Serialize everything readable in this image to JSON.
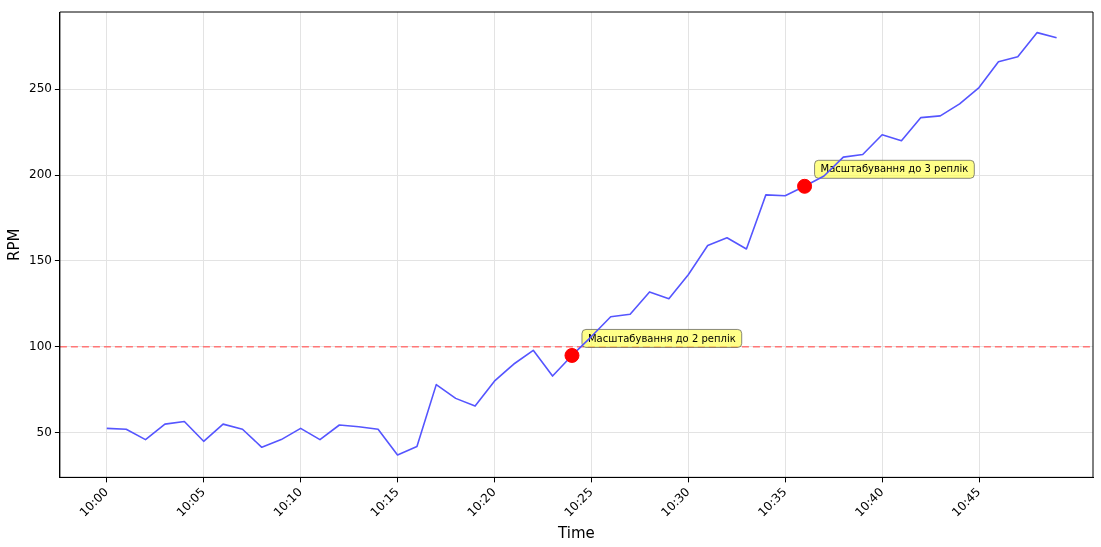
{
  "chart_data": {
    "type": "line",
    "xlabel": "Time",
    "ylabel": "RPM",
    "grid": true,
    "xlim": [
      9.9597,
      10.848
    ],
    "xticks": [
      {
        "value": 10,
        "label": "10:00"
      },
      {
        "value": 10.0833,
        "label": "10:05"
      },
      {
        "value": 10.1667,
        "label": "10:10"
      },
      {
        "value": 10.25,
        "label": "10:15"
      },
      {
        "value": 10.3333,
        "label": "10:20"
      },
      {
        "value": 10.4167,
        "label": "10:25"
      },
      {
        "value": 10.5,
        "label": "10:30"
      },
      {
        "value": 10.5833,
        "label": "10:35"
      },
      {
        "value": 10.6667,
        "label": "10:40"
      },
      {
        "value": 10.75,
        "label": "10:45"
      }
    ],
    "ylim": [
      24,
      295
    ],
    "yticks": [
      50,
      100,
      150,
      200,
      250
    ],
    "series": [
      {
        "type": "line",
        "color": "#5555ff",
        "marker": "none",
        "x": [
          10,
          10.0167,
          10.0333,
          10.05,
          10.0667,
          10.0833,
          10.1,
          10.1167,
          10.1333,
          10.15,
          10.1667,
          10.1833,
          10.2,
          10.2167,
          10.2333,
          10.25,
          10.2667,
          10.2833,
          10.3,
          10.3167,
          10.3333,
          10.35,
          10.3667,
          10.3833,
          10.4,
          10.4167,
          10.4333,
          10.45,
          10.4667,
          10.4833,
          10.5,
          10.5167,
          10.5333,
          10.55,
          10.5667,
          10.5833,
          10.6,
          10.6167,
          10.6333,
          10.65,
          10.6667,
          10.6833,
          10.7,
          10.7167,
          10.7333,
          10.75,
          10.7667,
          10.7833,
          10.8,
          10.8167
        ],
        "values": [
          52.5,
          52,
          46,
          55,
          56.5,
          45,
          55,
          52,
          41.5,
          46,
          52.5,
          46,
          54.5,
          53.5,
          52,
          37,
          42,
          78,
          70,
          65.5,
          80,
          90,
          98,
          83,
          95,
          106,
          117.5,
          119,
          132,
          128,
          142,
          159,
          163.5,
          157,
          188.5,
          188,
          193.5,
          199.5,
          210.5,
          212,
          223.5,
          220,
          233.5,
          234.5,
          241.5,
          251,
          266,
          269,
          283,
          280
        ]
      },
      {
        "type": "scatter",
        "color": "#ff0000",
        "marker": "circle",
        "x": [
          10.4,
          10.6
        ],
        "values": [
          95,
          193.5
        ]
      }
    ],
    "ref_lines": [
      {
        "axis": "y",
        "value": 100,
        "color": "#ff7777",
        "line_style": "dashed"
      }
    ],
    "annotations": [
      {
        "text": "Масштабування до 2 реплік",
        "x": 10.4,
        "y": 95
      },
      {
        "text": "Масштабування до 3 реплік",
        "x": 10.6,
        "y": 193.5
      }
    ]
  }
}
